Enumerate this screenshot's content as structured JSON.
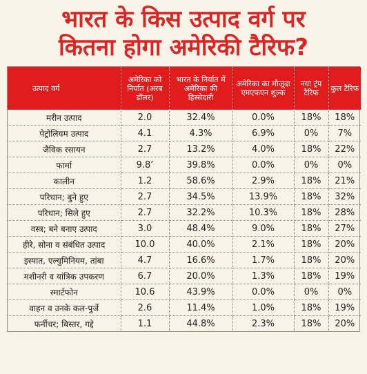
{
  "headline": {
    "line1": "भारत के किस उत्पाद वर्ग पर",
    "line2": "कितना होगा अमेरिकी टैरिफ?"
  },
  "table": {
    "columns": [
      "उत्पाद वर्ग",
      "अमेरिका को निर्यात (अरब डॉलर)",
      "भारत के निर्यात में अमेरिका की हिस्सेदारी",
      "अमेरिका का मौजूदा एमएफएन शुल्क",
      "नया ट्रंप टैरिफ",
      "कुल टैरिफ"
    ],
    "rows": [
      [
        "मरीन उत्पाद",
        "2.0",
        "32.4%",
        "0.0%",
        "18%",
        "18%"
      ],
      [
        "पेट्रोलियम उत्पाद",
        "4.1",
        "4.3%",
        "6.9%",
        "0%",
        "7%"
      ],
      [
        "जैविक रसायन",
        "2.7",
        "13.2%",
        "4.0%",
        "18%",
        "22%"
      ],
      [
        "फार्मा",
        "9.8’",
        "39.8%",
        "0.0%",
        "0%",
        "0%"
      ],
      [
        "कालीन",
        "1.2",
        "58.6%",
        "2.9%",
        "18%",
        "21%"
      ],
      [
        "परिधान; बुने हुए",
        "2.7",
        "34.5%",
        "13.9%",
        "18%",
        "32%"
      ],
      [
        "परिधान; सिले हुए",
        "2.7",
        "32.2%",
        "10.3%",
        "18%",
        "28%"
      ],
      [
        "वस्त्र; बने बनाए उत्पाद",
        "3.0",
        "48.4%",
        "9.0%",
        "18%",
        "27%"
      ],
      [
        "हीरे, सोना व संबंधित उत्पाद",
        "10.0",
        "40.0%",
        "2.1%",
        "18%",
        "20%"
      ],
      [
        "इस्पात, एल्युमिनियम, तांबा",
        "4.7",
        "16.6%",
        "1.7%",
        "18%",
        "20%"
      ],
      [
        "मशीनरी व यांत्रिक उपकरण",
        "6.7",
        "20.0%",
        "1.3%",
        "18%",
        "19%"
      ],
      [
        "स्मार्टफोन",
        "10.6",
        "43.9%",
        "0.0%",
        "0%",
        "0%"
      ],
      [
        "वाहन व उनके कल-पुर्जे",
        "2.6",
        "11.4%",
        "1.0%",
        "18%",
        "19%"
      ],
      [
        "फर्नीचर; बिस्तर, गद्दे",
        "1.1",
        "44.8%",
        "2.3%",
        "18%",
        "20%"
      ]
    ]
  },
  "colors": {
    "headline": "#d62626",
    "header_bg": "#e11c1c",
    "page_bg": "#f8f3e6"
  }
}
